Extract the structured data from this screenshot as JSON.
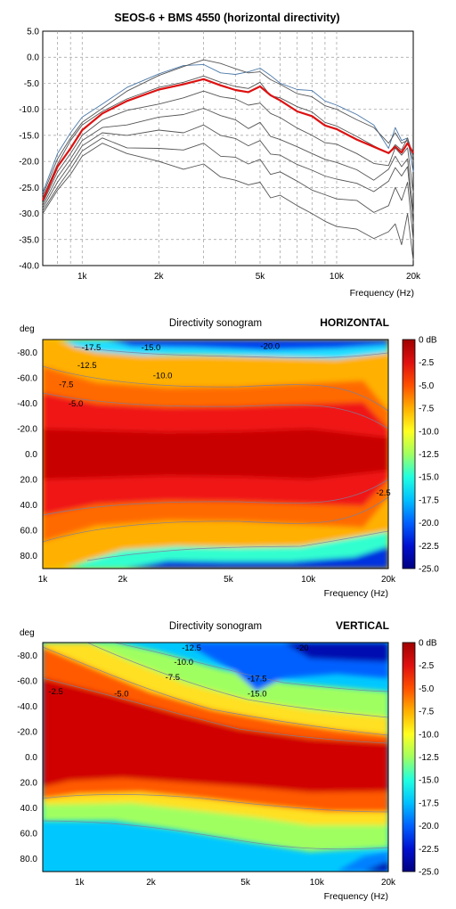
{
  "chart_data": [
    {
      "type": "line",
      "title": "SEOS-6 + BMS 4550 (horizontal directivity)",
      "xlabel": "Frequency (Hz)",
      "ylabel": "",
      "xscale": "log",
      "xlim": [
        700,
        20000
      ],
      "ylim": [
        -40,
        5
      ],
      "grid": true,
      "y_ticks": [
        "5.0",
        "0.0",
        "-5.0",
        "-10.0",
        "-15.0",
        "-20.0",
        "-25.0",
        "-30.0",
        "-35.0",
        "-40.0"
      ],
      "x_ticks": [
        {
          "value": 1000,
          "label": "1k"
        },
        {
          "value": 2000,
          "label": "2k"
        },
        {
          "value": 5000,
          "label": "5k"
        },
        {
          "value": 10000,
          "label": "10k"
        },
        {
          "value": 20000,
          "label": "20k"
        }
      ],
      "series": [
        {
          "color": "#4a78a8",
          "x": [
            700,
            800,
            900,
            1000,
            1200,
            1500,
            2000,
            2500,
            3000,
            3500,
            4000,
            4500,
            5000,
            5500,
            6000,
            7000,
            8000,
            9000,
            10000,
            12000,
            14000,
            16000,
            17000,
            18000,
            19000,
            20000
          ],
          "y": [
            -26,
            -18.5,
            -14.5,
            -11.5,
            -9,
            -5.8,
            -3.2,
            -1.6,
            -1.4,
            -3,
            -3.3,
            -2.8,
            -2.1,
            -3.5,
            -5,
            -6.2,
            -6.4,
            -8.4,
            -9.2,
            -11,
            -13,
            -17.5,
            -13.5,
            -16,
            -15.5,
            -22
          ]
        },
        {
          "color": "#555555",
          "x": [
            700,
            800,
            900,
            1000,
            1200,
            1500,
            2000,
            2500,
            3000,
            3500,
            4000,
            4500,
            5000,
            5500,
            6000,
            7000,
            8000,
            9000,
            10000,
            12000,
            14000,
            16000,
            17000,
            18000,
            19000,
            20000
          ],
          "y": [
            -26.5,
            -19.5,
            -15.5,
            -12.5,
            -9.8,
            -6.5,
            -3.5,
            -1.8,
            -0.5,
            -1.2,
            -2.2,
            -3,
            -2.8,
            -4.3,
            -5.2,
            -7,
            -7.6,
            -9.3,
            -10,
            -12,
            -13.5,
            -16.5,
            -14.5,
            -16.5,
            -16,
            -20
          ]
        },
        {
          "color": "#555555",
          "x": [
            700,
            800,
            900,
            1000,
            1200,
            1500,
            2000,
            2500,
            3000,
            3500,
            4000,
            4500,
            5000,
            5500,
            6000,
            7000,
            8000,
            9000,
            10000,
            12000,
            14000,
            16000,
            17000,
            18000,
            19000,
            20000
          ],
          "y": [
            -27,
            -20.5,
            -16,
            -13,
            -10.4,
            -8,
            -5.8,
            -4.8,
            -3.6,
            -4.8,
            -5.6,
            -6,
            -4.8,
            -7.4,
            -7.8,
            -9.5,
            -10.5,
            -12.5,
            -13.2,
            -15.2,
            -17,
            -18.5,
            -16.8,
            -17.8,
            -15.5,
            -19
          ]
        },
        {
          "color": "#dd1111",
          "x": [
            700,
            800,
            900,
            1000,
            1200,
            1500,
            2000,
            2500,
            3000,
            3500,
            4000,
            4500,
            5000,
            5500,
            6000,
            7000,
            8000,
            9000,
            10000,
            12000,
            14000,
            16000,
            17000,
            18000,
            19000,
            20000
          ],
          "y": [
            -27.5,
            -21,
            -17.5,
            -14,
            -10.8,
            -8.4,
            -6.2,
            -5.2,
            -4.2,
            -5.4,
            -6.3,
            -6.7,
            -5.6,
            -7.3,
            -8.3,
            -10.4,
            -11.3,
            -13.1,
            -13.8,
            -15.8,
            -17.2,
            -18.4,
            -17.2,
            -18.3,
            -16.5,
            -18.4
          ]
        },
        {
          "color": "#555555",
          "x": [
            700,
            800,
            900,
            1000,
            1200,
            1500,
            2000,
            2500,
            3000,
            3500,
            4000,
            4500,
            5000,
            5500,
            6000,
            7000,
            8000,
            9000,
            10000,
            12000,
            14000,
            16000,
            17000,
            18000,
            19000,
            20000
          ],
          "y": [
            -28,
            -22,
            -18.5,
            -15,
            -12,
            -10.2,
            -9,
            -7.8,
            -6.5,
            -7.6,
            -8,
            -9.2,
            -8.8,
            -10.8,
            -11.6,
            -13.6,
            -15,
            -16.4,
            -16.7,
            -18.5,
            -20.4,
            -20.8,
            -17.4,
            -18.8,
            -17.4,
            -26
          ]
        },
        {
          "color": "#555555",
          "x": [
            700,
            800,
            900,
            1000,
            1200,
            1500,
            2000,
            2500,
            3000,
            3500,
            4000,
            4500,
            5000,
            5500,
            6000,
            7000,
            8000,
            9000,
            10000,
            12000,
            14000,
            16000,
            17000,
            18000,
            19000,
            20000
          ],
          "y": [
            -28.5,
            -23,
            -19.5,
            -16,
            -13.5,
            -13,
            -11.5,
            -11,
            -9.8,
            -11.2,
            -12,
            -13.7,
            -12.5,
            -15.2,
            -15.8,
            -17.2,
            -18.5,
            -19.6,
            -20.2,
            -21.6,
            -23.6,
            -21.5,
            -19,
            -21,
            -19.5,
            -30
          ]
        },
        {
          "color": "#555555",
          "x": [
            700,
            800,
            900,
            1000,
            1200,
            1500,
            2000,
            2500,
            3000,
            3500,
            4000,
            4500,
            5000,
            5500,
            6000,
            7000,
            8000,
            9000,
            10000,
            12000,
            14000,
            16000,
            17000,
            18000,
            19000,
            20000
          ],
          "y": [
            -29,
            -24,
            -20.5,
            -17,
            -14.5,
            -15,
            -14,
            -14.5,
            -13,
            -15,
            -15.6,
            -17,
            -16,
            -18.6,
            -18.8,
            -20.6,
            -21.7,
            -22.8,
            -23.4,
            -24.2,
            -25.8,
            -23.8,
            -21.2,
            -22.8,
            -21,
            -32
          ]
        },
        {
          "color": "#555555",
          "x": [
            700,
            800,
            900,
            1000,
            1200,
            1500,
            2000,
            2500,
            3000,
            3500,
            4000,
            4500,
            5000,
            5500,
            6000,
            7000,
            8000,
            9000,
            10000,
            12000,
            14000,
            16000,
            17000,
            18000,
            19000,
            20000
          ],
          "y": [
            -29.5,
            -25,
            -21.5,
            -18,
            -15.5,
            -17.4,
            -17.5,
            -17.8,
            -16.5,
            -19,
            -19.2,
            -20.5,
            -19.6,
            -22.5,
            -22,
            -23.8,
            -25.5,
            -26.4,
            -27.2,
            -27.5,
            -29.8,
            -28.5,
            -25,
            -27.5,
            -24,
            -35
          ]
        },
        {
          "color": "#555555",
          "x": [
            700,
            800,
            900,
            1000,
            1200,
            1500,
            2000,
            2500,
            3000,
            3500,
            4000,
            4500,
            5000,
            5500,
            6000,
            7000,
            8000,
            9000,
            10000,
            12000,
            14000,
            16000,
            17000,
            18000,
            19000,
            20000
          ],
          "y": [
            -30,
            -25.5,
            -22.5,
            -19,
            -16.5,
            -18.5,
            -20,
            -21.5,
            -20.5,
            -23,
            -23.6,
            -24.5,
            -24,
            -27,
            -26.5,
            -28.5,
            -30,
            -31.5,
            -32.5,
            -33,
            -34.8,
            -33.5,
            -32,
            -36,
            -30,
            -39
          ]
        }
      ]
    },
    {
      "type": "heatmap",
      "title": "Directivity sonogram",
      "corner_label": "HORIZONTAL",
      "xlabel": "Frequency (Hz)",
      "ylabel": "deg",
      "xscale": "log",
      "xlim": [
        1000,
        20000
      ],
      "ylim": [
        -90,
        90
      ],
      "x_ticks": [
        {
          "value": 1000,
          "label": "1k"
        },
        {
          "value": 2000,
          "label": "2k"
        },
        {
          "value": 5000,
          "label": "5k"
        },
        {
          "value": 10000,
          "label": "10k"
        },
        {
          "value": 20000,
          "label": "20k"
        }
      ],
      "y_ticks": [
        "-80.0",
        "-60.0",
        "-40.0",
        "-20.0",
        "0.0",
        "20.0",
        "40.0",
        "60.0",
        "80.0"
      ],
      "colorbar": {
        "range": [
          -25,
          0
        ],
        "ticks": [
          "0 dB",
          "-2.5",
          "-5.0",
          "-7.5",
          "-10.0",
          "-12.5",
          "-15.0",
          "-17.5",
          "-20.0",
          "-22.5",
          "-25.0"
        ]
      },
      "contour_labels": [
        {
          "text": "-17.5",
          "freq": 1400,
          "deg": -84
        },
        {
          "text": "-15.0",
          "freq": 2350,
          "deg": -84
        },
        {
          "text": "-20.0",
          "freq": 6600,
          "deg": -85
        },
        {
          "text": "-12.5",
          "freq": 1350,
          "deg": -70
        },
        {
          "text": "-10.0",
          "freq": 2600,
          "deg": -62
        },
        {
          "text": "-7.5",
          "freq": 1150,
          "deg": -55
        },
        {
          "text": "-5.0",
          "freq": 1250,
          "deg": -40
        },
        {
          "text": "-2.5",
          "freq": 18000,
          "deg": 30
        }
      ],
      "freq_points": [
        1000,
        1500,
        2000,
        3000,
        4000,
        5000,
        7000,
        10000,
        14000,
        17000,
        20000
      ],
      "edge_deg_at_minus5": [
        38,
        44,
        46,
        52,
        50,
        56,
        58,
        60,
        60,
        56,
        35
      ],
      "edge_deg_at_minus15": [
        72,
        72,
        78,
        80,
        82,
        80,
        82,
        84,
        85,
        80,
        55
      ],
      "core_level_db": [
        -0.6,
        -0.8,
        -1.0,
        -1.2,
        -1.5,
        -1.2,
        -1.6,
        -1.8,
        -1.6,
        -1.5,
        -3.0
      ]
    },
    {
      "type": "heatmap",
      "title": "Directivity sonogram",
      "corner_label": "VERTICAL",
      "xlabel": "Frequency (Hz)",
      "ylabel": "deg",
      "xscale": "log",
      "xlim": [
        700,
        20000
      ],
      "ylim": [
        -90,
        90
      ],
      "x_ticks": [
        {
          "value": 1000,
          "label": "1k"
        },
        {
          "value": 2000,
          "label": "2k"
        },
        {
          "value": 5000,
          "label": "5k"
        },
        {
          "value": 10000,
          "label": "10k"
        },
        {
          "value": 20000,
          "label": "20k"
        }
      ],
      "y_ticks": [
        "-80.0",
        "-60.0",
        "-40.0",
        "-20.0",
        "0.0",
        "20.0",
        "40.0",
        "60.0",
        "80.0"
      ],
      "colorbar": {
        "range": [
          -25,
          0
        ],
        "ticks": [
          "0 dB",
          "-2.5",
          "-5.0",
          "-7.5",
          "-10.0",
          "-12.5",
          "-15.0",
          "-17.5",
          "-20.0",
          "-22.5",
          "-25.0"
        ]
      },
      "contour_labels": [
        {
          "text": "-2.5",
          "freq": 740,
          "deg": -52
        },
        {
          "text": "-12.5",
          "freq": 2700,
          "deg": -86
        },
        {
          "text": "-10.0",
          "freq": 2500,
          "deg": -75
        },
        {
          "text": "-7.5",
          "freq": 2300,
          "deg": -63
        },
        {
          "text": "-5.0",
          "freq": 1400,
          "deg": -50
        },
        {
          "text": "-17.5",
          "freq": 5100,
          "deg": -62
        },
        {
          "text": "-15.0",
          "freq": 5100,
          "deg": -50
        },
        {
          "text": "-20",
          "freq": 8200,
          "deg": -86
        }
      ],
      "freq_points": [
        700,
        1000,
        1500,
        2000,
        3000,
        4000,
        5000,
        7000,
        10000,
        14000,
        17000,
        20000
      ],
      "upper_edge_deg_at_minus5": [
        78,
        74,
        58,
        50,
        40,
        35,
        28,
        26,
        22,
        20,
        18,
        16
      ],
      "lower_edge_deg_at_minus5": [
        55,
        52,
        44,
        38,
        34,
        30,
        30,
        28,
        24,
        24,
        22,
        20
      ],
      "upper_edge_deg_at_minus15": [
        95,
        96,
        90,
        84,
        72,
        62,
        56,
        52,
        46,
        44,
        42,
        40
      ],
      "lower_edge_deg_at_minus15": [
        95,
        95,
        90,
        82,
        72,
        64,
        60,
        56,
        54,
        52,
        50,
        48
      ]
    }
  ]
}
